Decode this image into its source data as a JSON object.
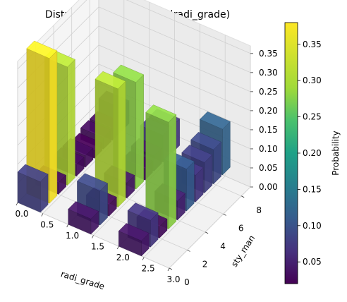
{
  "chart_data": {
    "type": "bar3d",
    "title": "Distribution of P(sty_man|radi_grade)",
    "xlabel": "radi_grade",
    "ylabel": "sty_man",
    "zlabel": "",
    "x_ticks": [
      "0.0",
      "0.5",
      "1.0",
      "1.5",
      "2.0",
      "2.5",
      "3.0"
    ],
    "y_ticks": [
      "0",
      "2",
      "4",
      "6",
      "8"
    ],
    "z_ticks": [
      "0.00",
      "0.05",
      "0.10",
      "0.15",
      "0.20",
      "0.25",
      "0.30",
      "0.35"
    ],
    "xlim": [
      0,
      3
    ],
    "ylim": [
      0,
      9
    ],
    "zlim": [
      0,
      0.37
    ],
    "colorbar": {
      "label": "Probability",
      "ticks": [
        "0.05",
        "0.10",
        "0.15",
        "0.20",
        "0.25",
        "0.30",
        "0.35"
      ],
      "range": [
        0.02,
        0.38
      ],
      "colormap": "viridis"
    },
    "x": [
      0,
      1,
      2
    ],
    "y": [
      0,
      1,
      2,
      3,
      4,
      5,
      6,
      7,
      8,
      9
    ],
    "values": [
      [
        0.08,
        0.38,
        0.03,
        0.31,
        0.03,
        0.03,
        0.02,
        0.03,
        0.03,
        0.06
      ],
      [
        0.04,
        0.09,
        0.03,
        0.31,
        0.04,
        0.28,
        0.03,
        0.04,
        0.07,
        0.07
      ],
      [
        0.04,
        0.07,
        0.03,
        0.28,
        0.05,
        0.11,
        0.07,
        0.08,
        0.09,
        0.12
      ]
    ]
  }
}
